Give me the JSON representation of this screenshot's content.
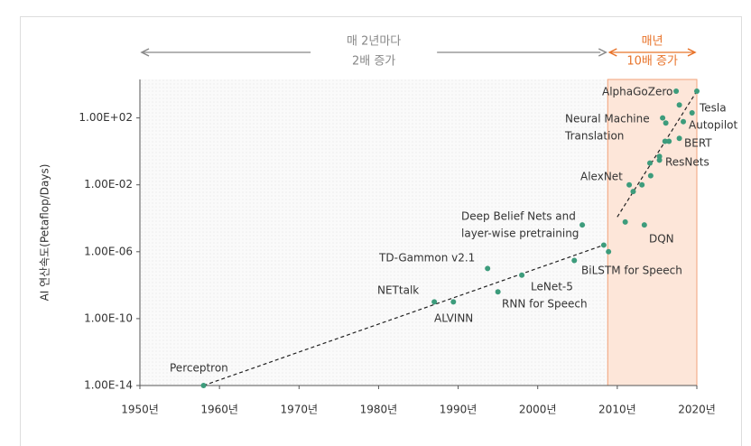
{
  "chart_data": {
    "type": "scatter",
    "y_label": "AI 연산속도(Petaflop/Days)",
    "log_y": true,
    "xlim": [
      1950,
      2020
    ],
    "ylim": [
      1e-14,
      20000
    ],
    "xticks": [
      {
        "value": 1950,
        "label": "1950년"
      },
      {
        "value": 1960,
        "label": "1960년"
      },
      {
        "value": 1970,
        "label": "1970년"
      },
      {
        "value": 1980,
        "label": "1980년"
      },
      {
        "value": 1990,
        "label": "1990년"
      },
      {
        "value": 2000,
        "label": "2000년"
      },
      {
        "value": 2010,
        "label": "2010년"
      },
      {
        "value": 2020,
        "label": "2020년"
      }
    ],
    "yticks": [
      {
        "value": 1e-14,
        "label": "1.00E-14"
      },
      {
        "value": 1e-10,
        "label": "1.00E-10"
      },
      {
        "value": 1e-06,
        "label": "1.00E-06"
      },
      {
        "value": 0.01,
        "label": "1.00E-02"
      },
      {
        "value": 100,
        "label": "1.00E+02"
      }
    ],
    "periods": [
      {
        "lines": [
          "매 2년마다",
          "2배 증가"
        ],
        "xlim": [
          1950,
          2008.8
        ],
        "color": "#888888"
      },
      {
        "lines": [
          "매년",
          "10배 증가"
        ],
        "xlim": [
          2008.8,
          2020
        ],
        "color": "#e8732a"
      }
    ],
    "series": [
      {
        "color": "#3d9c7c",
        "x": [
          1958,
          1987,
          1989.4,
          1993.7,
          1995,
          1998,
          2004.6,
          2005.6,
          2008.3,
          2008.9,
          2011,
          2013.4,
          2011.5,
          2012,
          2013.1,
          2014.2,
          2014.1,
          2015.3,
          2015.3,
          2016,
          2016.5,
          2017.8,
          2015.7,
          2016.1,
          2018.3,
          2019.4,
          2017.8,
          2017.4,
          2020
        ],
        "values": [
          1e-14,
          1e-09,
          1e-09,
          1e-07,
          4e-09,
          4e-08,
          3e-07,
          4e-05,
          2.5e-06,
          1e-06,
          6e-05,
          4e-05,
          0.01,
          0.004,
          0.01,
          0.035,
          0.2,
          0.5,
          0.3,
          4,
          4,
          6,
          100,
          50,
          60,
          200,
          600,
          4000,
          4000
        ]
      }
    ],
    "trend_lines": [
      {
        "x": [
          1958,
          2008.3
        ],
        "values": [
          1e-14,
          2.5e-06
        ]
      },
      {
        "x": [
          2010,
          2020
        ],
        "values": [
          0.00012,
          4000
        ]
      }
    ],
    "annotations": [
      {
        "lines": [
          "Perceptron"
        ]
      },
      {
        "lines": [
          "NETtalk"
        ]
      },
      {
        "lines": [
          "ALVINN"
        ]
      },
      {
        "lines": [
          "TD-Gammon v2.1"
        ]
      },
      {
        "lines": [
          "LeNet-5"
        ]
      },
      {
        "lines": [
          "RNN for Speech"
        ]
      },
      {
        "lines": [
          "BiLSTM for Speech"
        ]
      },
      {
        "lines": [
          "Deep Belief Nets and",
          "layer-wise pretraining"
        ]
      },
      {
        "lines": [
          "DQN"
        ]
      },
      {
        "lines": [
          "AlexNet"
        ]
      },
      {
        "lines": [
          "ResNets"
        ]
      },
      {
        "lines": [
          "BERT"
        ]
      },
      {
        "lines": [
          "Neural Machine",
          "Translation"
        ]
      },
      {
        "lines": [
          "Tesla",
          "Autopilot"
        ]
      },
      {
        "lines": [
          "AlphaGoZero"
        ]
      }
    ]
  }
}
